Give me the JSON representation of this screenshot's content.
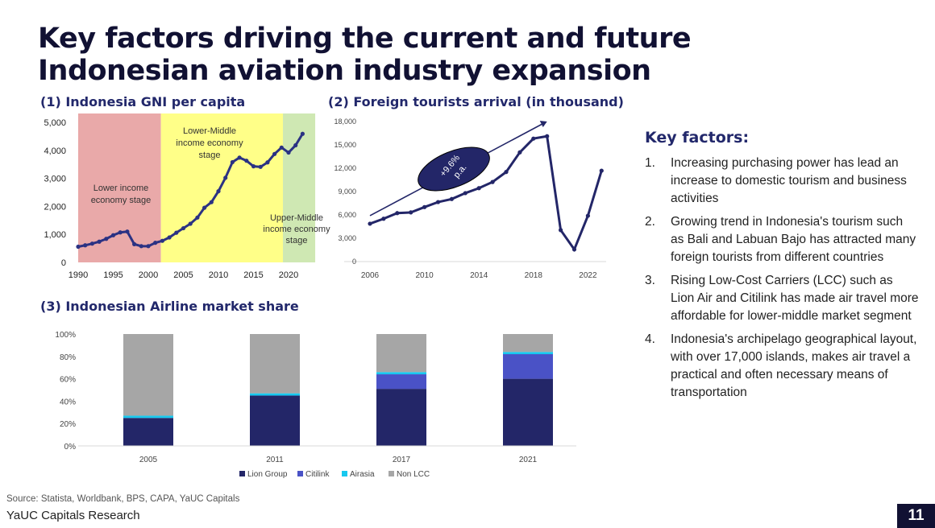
{
  "title": "Key factors driving the current and future Indonesian aviation industry expansion",
  "chart_data": [
    {
      "type": "line",
      "title": "(1) Indonesia GNI per capita",
      "x": [
        1990,
        1991,
        1992,
        1993,
        1994,
        1995,
        1996,
        1997,
        1998,
        1999,
        2000,
        2001,
        2002,
        2003,
        2004,
        2005,
        2006,
        2007,
        2008,
        2009,
        2010,
        2011,
        2012,
        2013,
        2014,
        2015,
        2016,
        2017,
        2018,
        2019,
        2020,
        2021,
        2022
      ],
      "values": [
        560,
        610,
        670,
        740,
        840,
        970,
        1070,
        1100,
        650,
        580,
        580,
        700,
        770,
        890,
        1060,
        1220,
        1380,
        1600,
        1950,
        2150,
        2540,
        3020,
        3580,
        3740,
        3630,
        3430,
        3410,
        3570,
        3870,
        4100,
        3920,
        4180,
        4590
      ],
      "xticks": [
        1990,
        1995,
        2000,
        2005,
        2010,
        2015,
        2020
      ],
      "yticks": [
        "0",
        "1,000",
        "2,000",
        "3,000",
        "4,000",
        "5,000"
      ],
      "ylim": [
        0,
        5000
      ],
      "bands": [
        {
          "label": "Lower income economy stage",
          "from": 1990,
          "to": 2001.8,
          "color": "#e9a9a9"
        },
        {
          "label": "Lower-Middle income economy stage",
          "from": 2001.8,
          "to": 2019.2,
          "color": "#ffff88"
        },
        {
          "label": "Upper-Middle income economy stage",
          "from": 2019.2,
          "to": 2023.8,
          "color": "#cfe8b3"
        }
      ],
      "color": "#2b3283"
    },
    {
      "type": "line",
      "title": "(2) Foreign tourists arrival (in thousand)",
      "x": [
        2006,
        2007,
        2008,
        2009,
        2010,
        2011,
        2012,
        2013,
        2014,
        2015,
        2016,
        2017,
        2018,
        2019,
        2020,
        2021,
        2022,
        2023
      ],
      "values": [
        4870,
        5510,
        6230,
        6320,
        7000,
        7650,
        8040,
        8800,
        9440,
        10230,
        11520,
        14040,
        15810,
        16110,
        4050,
        1560,
        5890,
        11680
      ],
      "xticks": [
        2006,
        2010,
        2014,
        2018,
        2022
      ],
      "yticks": [
        "0",
        "3,000",
        "6,000",
        "9,000",
        "12,000",
        "15,000",
        "18,000"
      ],
      "ylim": [
        0,
        18000
      ],
      "annotation": {
        "text1": "+9.6%",
        "text2": "p.a.",
        "trend_from": [
          2006,
          5900
        ],
        "trend_to": [
          2019,
          18000
        ]
      },
      "color": "#232668"
    },
    {
      "type": "bar",
      "stacked": true,
      "title": "(3) Indonesian Airline market share",
      "categories": [
        "2005",
        "2011",
        "2017",
        "2021"
      ],
      "series": [
        {
          "name": "Lion Group",
          "values": [
            25,
            45,
            51,
            60
          ],
          "color": "#232668"
        },
        {
          "name": "Citilink",
          "values": [
            0,
            0,
            13,
            22
          ],
          "color": "#4a52c6"
        },
        {
          "name": "Airasia",
          "values": [
            2,
            2,
            2,
            2
          ],
          "color": "#17c8ef"
        },
        {
          "name": "Non LCC",
          "values": [
            73,
            53,
            34,
            16
          ],
          "color": "#a6a6a6"
        }
      ],
      "yticks": [
        "0%",
        "20%",
        "40%",
        "60%",
        "80%",
        "100%"
      ],
      "ylim": [
        0,
        100
      ],
      "legend": "bottom"
    }
  ],
  "key_factors": {
    "heading": "Key factors:",
    "items": [
      {
        "num": "1.",
        "text": "Increasing purchasing power has lead an increase to domestic tourism and business activities"
      },
      {
        "num": "2.",
        "text": "Growing trend in Indonesia's tourism such as Bali and Labuan Bajo has attracted many foreign tourists from different countries"
      },
      {
        "num": "3.",
        "text": "Rising Low-Cost Carriers (LCC) such as Lion Air and Citilink has made air travel more affordable for lower-middle market segment"
      },
      {
        "num": "4.",
        "text": "Indonesia's archipelago geographical layout, with over 17,000 islands, makes air travel a practical and often necessary means of transportation"
      }
    ]
  },
  "footer": {
    "source": "Source: Statista, Worldbank, BPS, CAPA, YaUC Capitals",
    "brand": "YaUC Capitals Research",
    "page": "11"
  }
}
